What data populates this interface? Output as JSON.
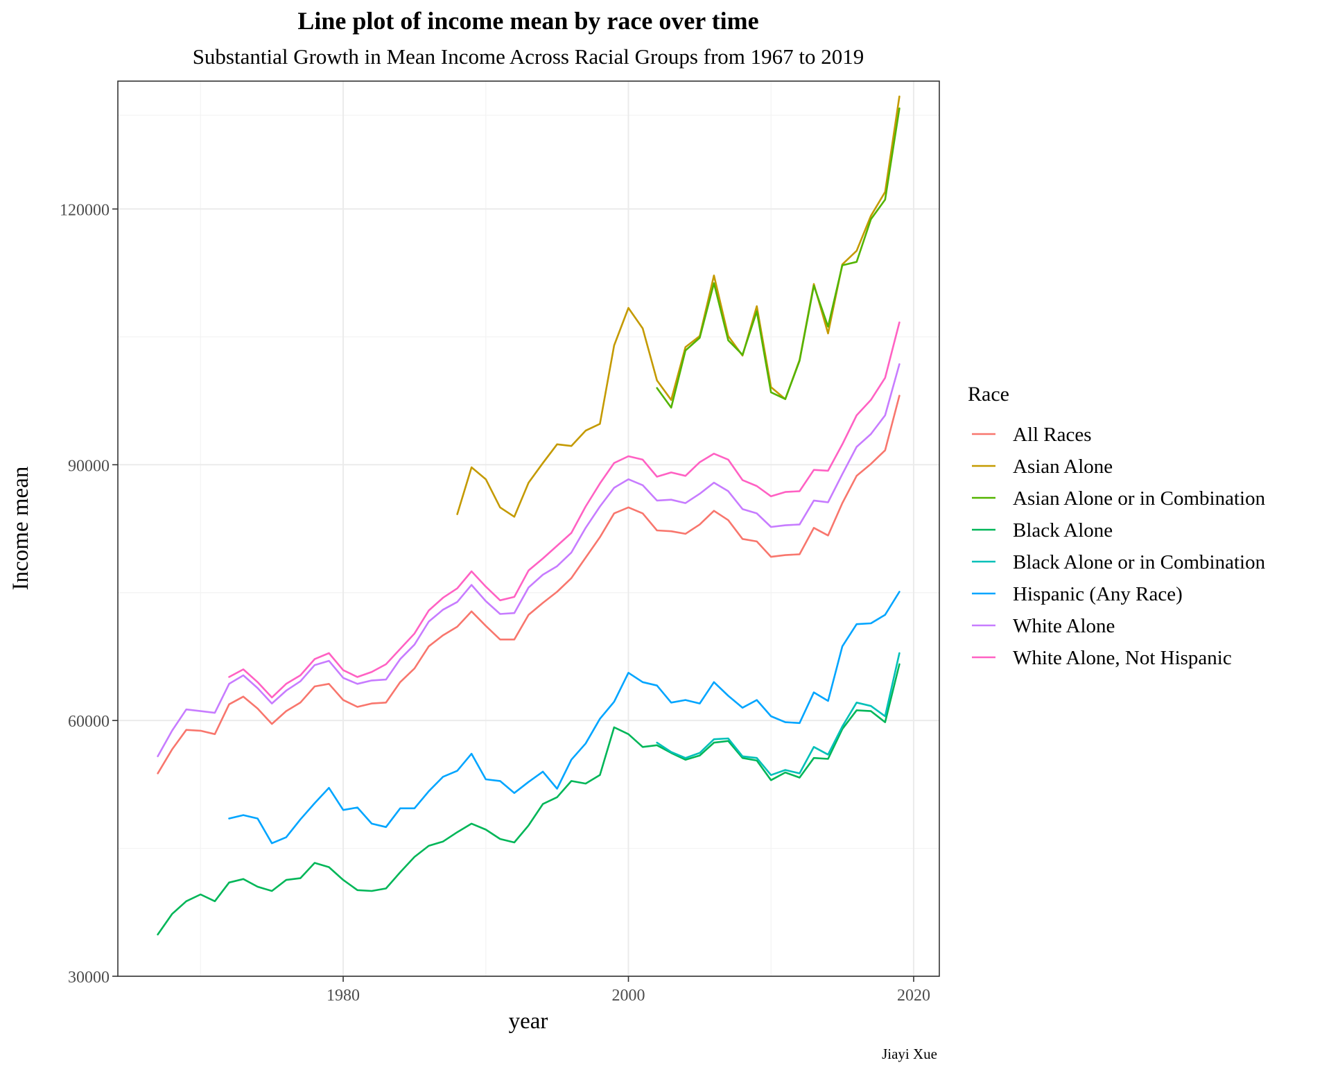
{
  "chart_data": {
    "type": "line",
    "title": "Line plot of income mean by race over time",
    "subtitle": "Substantial Growth in Mean Income Across Racial Groups from 1967 to 2019",
    "xlabel": "year",
    "ylabel": "Income mean",
    "caption": "Jiayi Xue",
    "xlim": [
      1964.2,
      2021.8
    ],
    "ylim": [
      30000,
      135000
    ],
    "x_ticks": [
      1980,
      2000,
      2020
    ],
    "x_tick_labels": [
      "1980",
      "2000",
      "2020"
    ],
    "x_minor_ticks": [
      1970,
      1990,
      2010
    ],
    "y_ticks": [
      30000,
      60000,
      90000,
      120000
    ],
    "y_tick_labels": [
      "30000",
      "60000",
      "90000",
      "120000"
    ],
    "y_minor_ticks": [
      45000,
      75000,
      105000,
      131000
    ],
    "grid": true,
    "legend_title": "Race",
    "legend_position": "right",
    "series": [
      {
        "name": "All Races",
        "color": "#F8766D",
        "x": [
          1967,
          1968,
          1969,
          1970,
          1971,
          1972,
          1973,
          1974,
          1975,
          1976,
          1977,
          1978,
          1979,
          1980,
          1981,
          1982,
          1983,
          1984,
          1985,
          1986,
          1987,
          1988,
          1989,
          1990,
          1991,
          1992,
          1993,
          1994,
          1995,
          1996,
          1997,
          1998,
          1999,
          2000,
          2001,
          2002,
          2003,
          2004,
          2005,
          2006,
          2007,
          2008,
          2009,
          2010,
          2011,
          2012,
          2013,
          2014,
          2015,
          2016,
          2017,
          2018,
          2019
        ],
        "y": [
          53800,
          56600,
          58900,
          58800,
          58400,
          61900,
          62800,
          61400,
          59600,
          61100,
          62100,
          64000,
          64300,
          62400,
          61600,
          62000,
          62100,
          64500,
          66100,
          68700,
          70000,
          71000,
          72800,
          71100,
          69500,
          69500,
          72400,
          73800,
          75100,
          76700,
          79100,
          81500,
          84300,
          85000,
          84300,
          82300,
          82200,
          81900,
          83000,
          84600,
          83500,
          81300,
          81000,
          79200,
          79400,
          79500,
          82600,
          81700,
          85500,
          88700,
          90100,
          91700,
          98100
        ]
      },
      {
        "name": "Asian Alone",
        "color": "#C49A00",
        "x": [
          1988,
          1989,
          1990,
          1991,
          1992,
          1993,
          1994,
          1995,
          1996,
          1997,
          1998,
          1999,
          2000,
          2001,
          2002,
          2003,
          2004,
          2005,
          2006,
          2007,
          2008,
          2009,
          2010,
          2011,
          2012,
          2013,
          2014,
          2015,
          2016,
          2017,
          2018,
          2019
        ],
        "y": [
          84200,
          89700,
          88300,
          85000,
          83900,
          87900,
          90200,
          92400,
          92200,
          94000,
          94800,
          104000,
          108400,
          106000,
          99900,
          97600,
          103800,
          105100,
          112200,
          105100,
          102800,
          108600,
          99100,
          97700,
          102300,
          111200,
          105400,
          113500,
          115100,
          119200,
          122000,
          133200
        ]
      },
      {
        "name": "Asian Alone or in Combination",
        "color": "#53B400",
        "x": [
          2002,
          2003,
          2004,
          2005,
          2006,
          2007,
          2008,
          2009,
          2010,
          2011,
          2012,
          2013,
          2014,
          2015,
          2016,
          2017,
          2018,
          2019
        ],
        "y": [
          99000,
          96700,
          103400,
          104900,
          111300,
          104600,
          102900,
          108000,
          98500,
          97700,
          102200,
          111000,
          106200,
          113400,
          113800,
          118800,
          121100,
          131800
        ]
      },
      {
        "name": "Black Alone",
        "color": "#00B658",
        "x": [
          1967,
          1968,
          1969,
          1970,
          1971,
          1972,
          1973,
          1974,
          1975,
          1976,
          1977,
          1978,
          1979,
          1980,
          1981,
          1982,
          1983,
          1984,
          1985,
          1986,
          1987,
          1988,
          1989,
          1990,
          1991,
          1992,
          1993,
          1994,
          1995,
          1996,
          1997,
          1998,
          1999,
          2000,
          2001,
          2002,
          2003,
          2004,
          2005,
          2006,
          2007,
          2008,
          2009,
          2010,
          2011,
          2012,
          2013,
          2014,
          2015,
          2016,
          2017,
          2018,
          2019
        ],
        "y": [
          34900,
          37300,
          38800,
          39600,
          38800,
          41000,
          41400,
          40500,
          40000,
          41300,
          41500,
          43300,
          42800,
          41300,
          40100,
          40000,
          40300,
          42200,
          44000,
          45300,
          45800,
          46900,
          47900,
          47200,
          46100,
          45700,
          47700,
          50200,
          51000,
          52900,
          52600,
          53600,
          59200,
          58400,
          56900,
          57100,
          56200,
          55400,
          55900,
          57400,
          57600,
          55600,
          55300,
          53000,
          53900,
          53300,
          55600,
          55500,
          59000,
          61200,
          61100,
          59800,
          66600
        ]
      },
      {
        "name": "Black Alone or in Combination",
        "color": "#00C0B8",
        "x": [
          2002,
          2003,
          2004,
          2005,
          2006,
          2007,
          2008,
          2009,
          2010,
          2011,
          2012,
          2013,
          2014,
          2015,
          2016,
          2017,
          2018,
          2019
        ],
        "y": [
          57400,
          56300,
          55600,
          56200,
          57800,
          57900,
          55800,
          55600,
          53600,
          54200,
          53800,
          56900,
          56000,
          59300,
          62100,
          61700,
          60500,
          67900
        ]
      },
      {
        "name": "Hispanic (Any Race)",
        "color": "#00A5FF",
        "x": [
          1972,
          1973,
          1974,
          1975,
          1976,
          1977,
          1978,
          1979,
          1980,
          1981,
          1982,
          1983,
          1984,
          1985,
          1986,
          1987,
          1988,
          1989,
          1990,
          1991,
          1992,
          1993,
          1994,
          1995,
          1996,
          1997,
          1998,
          1999,
          2000,
          2001,
          2002,
          2003,
          2004,
          2005,
          2006,
          2007,
          2008,
          2009,
          2010,
          2011,
          2012,
          2013,
          2014,
          2015,
          2016,
          2017,
          2018,
          2019
        ],
        "y": [
          48500,
          48900,
          48500,
          45600,
          46300,
          48400,
          50300,
          52100,
          49500,
          49800,
          47900,
          47500,
          49700,
          49700,
          51700,
          53400,
          54100,
          56100,
          53100,
          52900,
          51500,
          52800,
          54000,
          52000,
          55400,
          57300,
          60200,
          62200,
          65600,
          64500,
          64100,
          62100,
          62400,
          62000,
          64500,
          62900,
          61500,
          62400,
          60500,
          59800,
          59700,
          63300,
          62300,
          68700,
          71300,
          71400,
          72400,
          75100
        ]
      },
      {
        "name": "White Alone",
        "color": "#C77CFF",
        "x": [
          1967,
          1968,
          1969,
          1970,
          1971,
          1972,
          1973,
          1974,
          1975,
          1976,
          1977,
          1978,
          1979,
          1980,
          1981,
          1982,
          1983,
          1984,
          1985,
          1986,
          1987,
          1988,
          1989,
          1990,
          1991,
          1992,
          1993,
          1994,
          1995,
          1996,
          1997,
          1998,
          1999,
          2000,
          2001,
          2002,
          2003,
          2004,
          2005,
          2006,
          2007,
          2008,
          2009,
          2010,
          2011,
          2012,
          2013,
          2014,
          2015,
          2016,
          2017,
          2018,
          2019
        ],
        "y": [
          55800,
          58800,
          61300,
          61100,
          60900,
          64300,
          65300,
          63800,
          62000,
          63500,
          64600,
          66500,
          67000,
          65000,
          64300,
          64700,
          64800,
          67200,
          68900,
          71600,
          73000,
          73900,
          75900,
          74000,
          72500,
          72600,
          75600,
          77100,
          78100,
          79700,
          82600,
          85100,
          87300,
          88300,
          87600,
          85800,
          85900,
          85500,
          86600,
          87900,
          86900,
          84800,
          84300,
          82700,
          82900,
          83000,
          85800,
          85600,
          88900,
          92100,
          93600,
          95800,
          101800
        ]
      },
      {
        "name": "White Alone, Not Hispanic",
        "color": "#FF61C3",
        "x": [
          1972,
          1973,
          1974,
          1975,
          1976,
          1977,
          1978,
          1979,
          1980,
          1981,
          1982,
          1983,
          1984,
          1985,
          1986,
          1987,
          1988,
          1989,
          1990,
          1991,
          1992,
          1993,
          1994,
          1995,
          1996,
          1997,
          1998,
          1999,
          2000,
          2001,
          2002,
          2003,
          2004,
          2005,
          2006,
          2007,
          2008,
          2009,
          2010,
          2011,
          2012,
          2013,
          2014,
          2015,
          2016,
          2017,
          2018,
          2019
        ],
        "y": [
          65100,
          66000,
          64500,
          62700,
          64300,
          65300,
          67200,
          67900,
          65900,
          65100,
          65700,
          66600,
          68400,
          70200,
          72900,
          74400,
          75500,
          77500,
          75700,
          74100,
          74500,
          77600,
          79000,
          80500,
          82000,
          85100,
          87800,
          90200,
          91000,
          90600,
          88600,
          89100,
          88700,
          90300,
          91300,
          90600,
          88200,
          87500,
          86300,
          86800,
          86900,
          89400,
          89300,
          92400,
          95800,
          97600,
          100200,
          106700
        ]
      }
    ]
  }
}
